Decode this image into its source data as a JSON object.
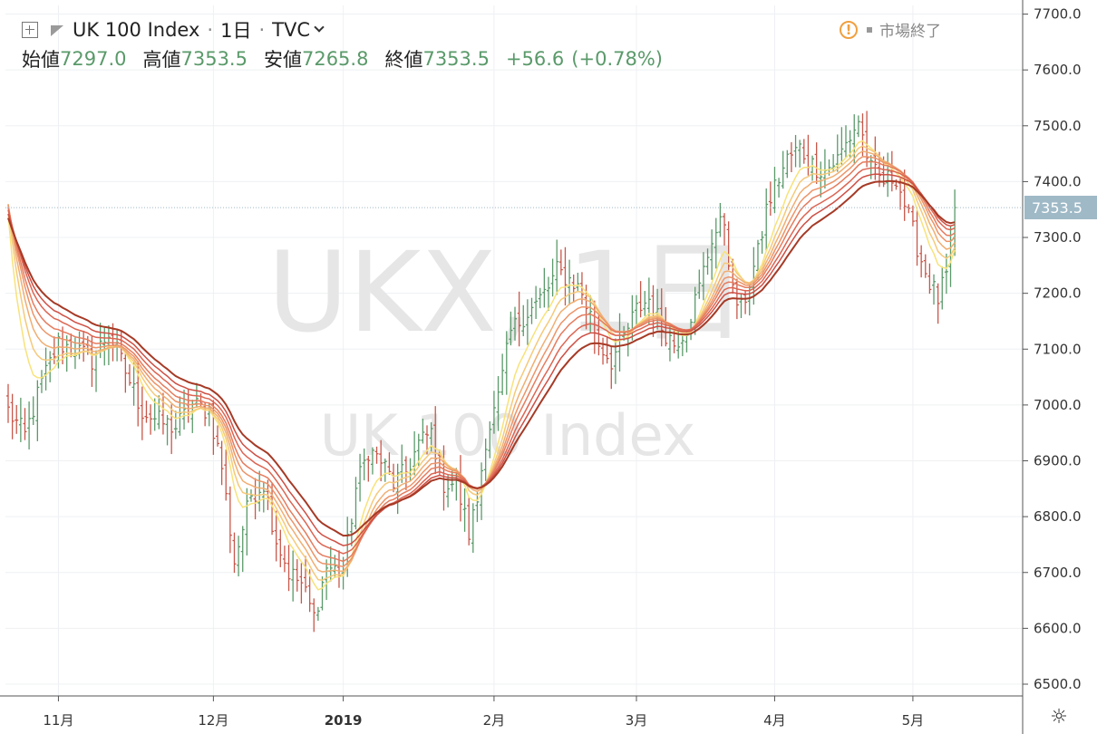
{
  "header": {
    "symbol": "UK 100 Index",
    "interval": "1日",
    "exchange": "TVC",
    "ohlc": [
      {
        "label": "始値",
        "value": "7297.0"
      },
      {
        "label": "高値",
        "value": "7353.5"
      },
      {
        "label": "安値",
        "value": "7265.8"
      },
      {
        "label": "終値",
        "value": "7353.5"
      }
    ],
    "change": "+56.6",
    "change_pct": "(+0.78%)",
    "market_status": "市場終了"
  },
  "watermark": {
    "line1": "UKX, 1日",
    "line2": "UK 100 Index"
  },
  "colors": {
    "up": "#5a9a6a",
    "down": "#c8574a",
    "last_price": "#9fb9c7"
  },
  "chart_data": {
    "type": "line",
    "title": "",
    "ylim": [
      6480,
      7730
    ],
    "y_ticks": [
      "7700.0",
      "7600.0",
      "7500.0",
      "7400.0",
      "7300.0",
      "7200.0",
      "7100.0",
      "7000.0",
      "6900.0",
      "6800.0",
      "6700.0",
      "6600.0",
      "6500.0"
    ],
    "x_ticks": [
      {
        "label": "11月",
        "bar": 12
      },
      {
        "label": "12月",
        "bar": 49
      },
      {
        "label": "2019",
        "bar": 80
      },
      {
        "label": "2月",
        "bar": 116
      },
      {
        "label": "3月",
        "bar": 150
      },
      {
        "label": "4月",
        "bar": 183
      },
      {
        "label": "5月",
        "bar": 216
      }
    ],
    "last_price": 7353.5,
    "last_price_label": "7353.5",
    "grid": true,
    "anchors": [
      [
        0,
        6990
      ],
      [
        4,
        6945
      ],
      [
        8,
        7040
      ],
      [
        12,
        7110
      ],
      [
        16,
        7100
      ],
      [
        20,
        7080
      ],
      [
        24,
        7130
      ],
      [
        28,
        7060
      ],
      [
        32,
        6990
      ],
      [
        36,
        6970
      ],
      [
        40,
        6960
      ],
      [
        44,
        7000
      ],
      [
        48,
        6990
      ],
      [
        51,
        6890
      ],
      [
        54,
        6720
      ],
      [
        58,
        6840
      ],
      [
        61,
        6860
      ],
      [
        64,
        6760
      ],
      [
        67,
        6700
      ],
      [
        70,
        6680
      ],
      [
        73,
        6620
      ],
      [
        76,
        6710
      ],
      [
        80,
        6700
      ],
      [
        83,
        6850
      ],
      [
        86,
        6920
      ],
      [
        89,
        6900
      ],
      [
        92,
        6860
      ],
      [
        95,
        6880
      ],
      [
        98,
        6930
      ],
      [
        101,
        6950
      ],
      [
        104,
        6860
      ],
      [
        107,
        6860
      ],
      [
        110,
        6770
      ],
      [
        112,
        6830
      ],
      [
        114,
        6940
      ],
      [
        117,
        7010
      ],
      [
        120,
        7130
      ],
      [
        123,
        7160
      ],
      [
        126,
        7180
      ],
      [
        129,
        7210
      ],
      [
        131,
        7240
      ],
      [
        133,
        7230
      ],
      [
        135,
        7220
      ],
      [
        137,
        7200
      ],
      [
        139,
        7160
      ],
      [
        141,
        7110
      ],
      [
        144,
        7080
      ],
      [
        147,
        7120
      ],
      [
        150,
        7170
      ],
      [
        153,
        7190
      ],
      [
        156,
        7140
      ],
      [
        159,
        7110
      ],
      [
        162,
        7140
      ],
      [
        165,
        7210
      ],
      [
        168,
        7300
      ],
      [
        171,
        7330
      ],
      [
        173,
        7200
      ],
      [
        175,
        7170
      ],
      [
        177,
        7220
      ],
      [
        179,
        7270
      ],
      [
        181,
        7350
      ],
      [
        183,
        7390
      ],
      [
        186,
        7440
      ],
      [
        189,
        7460
      ],
      [
        192,
        7430
      ],
      [
        195,
        7420
      ],
      [
        198,
        7440
      ],
      [
        201,
        7480
      ],
      [
        203,
        7510
      ],
      [
        206,
        7420
      ],
      [
        209,
        7400
      ],
      [
        212,
        7410
      ],
      [
        214,
        7360
      ],
      [
        216,
        7310
      ],
      [
        218,
        7260
      ],
      [
        220,
        7220
      ],
      [
        222,
        7190
      ],
      [
        224,
        7230
      ],
      [
        226,
        7320
      ]
    ],
    "ribbon_periods": [
      8,
      11,
      14,
      17,
      20,
      24,
      28,
      33
    ],
    "ribbon_colors": [
      "#f8e27a",
      "#f5c97a",
      "#f0ae72",
      "#ec9468",
      "#e57c5e",
      "#dc6552",
      "#ce4f44",
      "#a63a26"
    ]
  }
}
